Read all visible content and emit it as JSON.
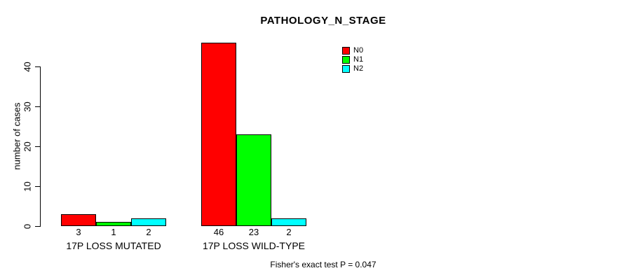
{
  "title": "PATHOLOGY_N_STAGE",
  "footer": "Fisher's exact test P = 0.047",
  "chart_data": {
    "type": "bar",
    "title": "PATHOLOGY_N_STAGE",
    "xlabel": "",
    "ylabel": "number of cases",
    "ylim": [
      0,
      46
    ],
    "yticks": [
      0,
      10,
      20,
      30,
      40
    ],
    "grid": false,
    "legend_position": "top-right",
    "categories": [
      "17P LOSS MUTATED",
      "17P LOSS WILD-TYPE"
    ],
    "series": [
      {
        "name": "N0",
        "color": "#ff0000",
        "values": [
          3,
          46
        ]
      },
      {
        "name": "N1",
        "color": "#00ff00",
        "values": [
          1,
          23
        ]
      },
      {
        "name": "N2",
        "color": "#00ffff",
        "values": [
          2,
          2
        ]
      }
    ],
    "bar_value_labels": [
      [
        "3",
        "1",
        "2"
      ],
      [
        "46",
        "23",
        "2"
      ]
    ],
    "annotation": "Fisher's exact test P = 0.047",
    "axis_color": "#000000"
  }
}
